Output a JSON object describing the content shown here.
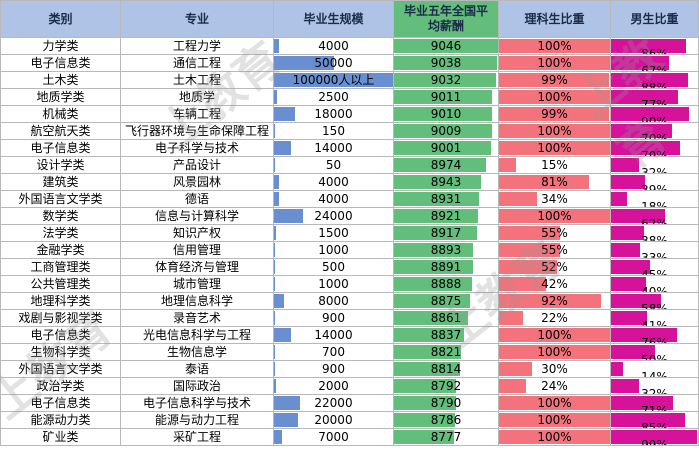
{
  "headers": [
    "类别",
    "专业",
    "毕业生规模",
    "毕业五年全国平均薪酬",
    "理科生比重",
    "男生比重"
  ],
  "header_salary_line1": "毕业五年全国平",
  "header_salary_line2": "均薪酬",
  "watermark": "上教育",
  "colors": {
    "header_bg": "#aec3e6",
    "scale_bar": "#6a8fd1",
    "salary_bar": "#63be7b",
    "science_bar": "#f3727c",
    "male_bar": "#d6119a"
  },
  "rows": [
    {
      "category": "力学类",
      "major": "工程力学",
      "scale": "4000",
      "scale_n": 4000,
      "salary": "9046",
      "salary_n": 9046,
      "science": "100%",
      "science_n": 100,
      "male": "86%",
      "male_n": 86
    },
    {
      "category": "电子信息类",
      "major": "通信工程",
      "scale": "50000",
      "scale_n": 50000,
      "salary": "9038",
      "salary_n": 9038,
      "science": "100%",
      "science_n": 100,
      "male": "67%",
      "male_n": 67
    },
    {
      "category": "土木类",
      "major": "土木工程",
      "scale": "100000人以上",
      "scale_n": 100000,
      "salary": "9032",
      "salary_n": 9032,
      "science": "99%",
      "science_n": 99,
      "male": "88%",
      "male_n": 88
    },
    {
      "category": "地质学类",
      "major": "地质学",
      "scale": "2500",
      "scale_n": 2500,
      "salary": "9011",
      "salary_n": 9011,
      "science": "100%",
      "science_n": 100,
      "male": "77%",
      "male_n": 77
    },
    {
      "category": "机械类",
      "major": "车辆工程",
      "scale": "18000",
      "scale_n": 18000,
      "salary": "9010",
      "salary_n": 9010,
      "science": "99%",
      "science_n": 99,
      "male": "90%",
      "male_n": 90
    },
    {
      "category": "航空航天类",
      "major": "飞行器环境与生命保障工程",
      "scale": "150",
      "scale_n": 150,
      "salary": "9009",
      "salary_n": 9009,
      "science": "100%",
      "science_n": 100,
      "male": "70%",
      "male_n": 70
    },
    {
      "category": "电子信息类",
      "major": "电子科学与技术",
      "scale": "14000",
      "scale_n": 14000,
      "salary": "9001",
      "salary_n": 9001,
      "science": "100%",
      "science_n": 100,
      "male": "79%",
      "male_n": 79
    },
    {
      "category": "设计学类",
      "major": "产品设计",
      "scale": "50",
      "scale_n": 50,
      "salary": "8974",
      "salary_n": 8974,
      "science": "15%",
      "science_n": 15,
      "male": "32%",
      "male_n": 32
    },
    {
      "category": "建筑类",
      "major": "风景园林",
      "scale": "4000",
      "scale_n": 4000,
      "salary": "8943",
      "salary_n": 8943,
      "science": "81%",
      "science_n": 81,
      "male": "39%",
      "male_n": 39
    },
    {
      "category": "外国语言文学类",
      "major": "德语",
      "scale": "4000",
      "scale_n": 4000,
      "salary": "8931",
      "salary_n": 8931,
      "science": "34%",
      "science_n": 34,
      "male": "18%",
      "male_n": 18
    },
    {
      "category": "数学类",
      "major": "信息与计算科学",
      "scale": "24000",
      "scale_n": 24000,
      "salary": "8921",
      "salary_n": 8921,
      "science": "100%",
      "science_n": 100,
      "male": "62%",
      "male_n": 62
    },
    {
      "category": "法学类",
      "major": "知识产权",
      "scale": "1500",
      "scale_n": 1500,
      "salary": "8917",
      "salary_n": 8917,
      "science": "55%",
      "science_n": 55,
      "male": "38%",
      "male_n": 38
    },
    {
      "category": "金融学类",
      "major": "信用管理",
      "scale": "1000",
      "scale_n": 1000,
      "salary": "8893",
      "salary_n": 8893,
      "science": "55%",
      "science_n": 55,
      "male": "33%",
      "male_n": 33
    },
    {
      "category": "工商管理类",
      "major": "体育经济与管理",
      "scale": "500",
      "scale_n": 500,
      "salary": "8891",
      "salary_n": 8891,
      "science": "52%",
      "science_n": 52,
      "male": "45%",
      "male_n": 45
    },
    {
      "category": "公共管理类",
      "major": "城市管理",
      "scale": "1000",
      "scale_n": 1000,
      "salary": "8888",
      "salary_n": 8888,
      "science": "42%",
      "science_n": 42,
      "male": "40%",
      "male_n": 40
    },
    {
      "category": "地理科学类",
      "major": "地理信息科学",
      "scale": "8000",
      "scale_n": 8000,
      "salary": "8875",
      "salary_n": 8875,
      "science": "92%",
      "science_n": 92,
      "male": "58%",
      "male_n": 58
    },
    {
      "category": "戏剧与影视学类",
      "major": "录音艺术",
      "scale": "900",
      "scale_n": 900,
      "salary": "8861",
      "salary_n": 8861,
      "science": "22%",
      "science_n": 22,
      "male": "41%",
      "male_n": 41
    },
    {
      "category": "电子信息类",
      "major": "光电信息科学与工程",
      "scale": "14000",
      "scale_n": 14000,
      "salary": "8837",
      "salary_n": 8837,
      "science": "100%",
      "science_n": 100,
      "male": "76%",
      "male_n": 76
    },
    {
      "category": "生物科学类",
      "major": "生物信息学",
      "scale": "700",
      "scale_n": 700,
      "salary": "8821",
      "salary_n": 8821,
      "science": "100%",
      "science_n": 100,
      "male": "50%",
      "male_n": 50
    },
    {
      "category": "外国语言文学类",
      "major": "泰语",
      "scale": "900",
      "scale_n": 900,
      "salary": "8814",
      "salary_n": 8814,
      "science": "30%",
      "science_n": 30,
      "male": "14%",
      "male_n": 14
    },
    {
      "category": "政治学类",
      "major": "国际政治",
      "scale": "2000",
      "scale_n": 2000,
      "salary": "8792",
      "salary_n": 8792,
      "science": "24%",
      "science_n": 24,
      "male": "32%",
      "male_n": 32
    },
    {
      "category": "电子信息类",
      "major": "电子信息科学与技术",
      "scale": "22000",
      "scale_n": 22000,
      "salary": "8790",
      "salary_n": 8790,
      "science": "100%",
      "science_n": 100,
      "male": "71%",
      "male_n": 71
    },
    {
      "category": "能源动力类",
      "major": "能源与动力工程",
      "scale": "20000",
      "scale_n": 20000,
      "salary": "8786",
      "salary_n": 8786,
      "science": "100%",
      "science_n": 100,
      "male": "85%",
      "male_n": 85
    },
    {
      "category": "矿业类",
      "major": "采矿工程",
      "scale": "7000",
      "scale_n": 7000,
      "salary": "8777",
      "salary_n": 8777,
      "science": "100%",
      "science_n": 100,
      "male": "99%",
      "male_n": 99
    }
  ]
}
